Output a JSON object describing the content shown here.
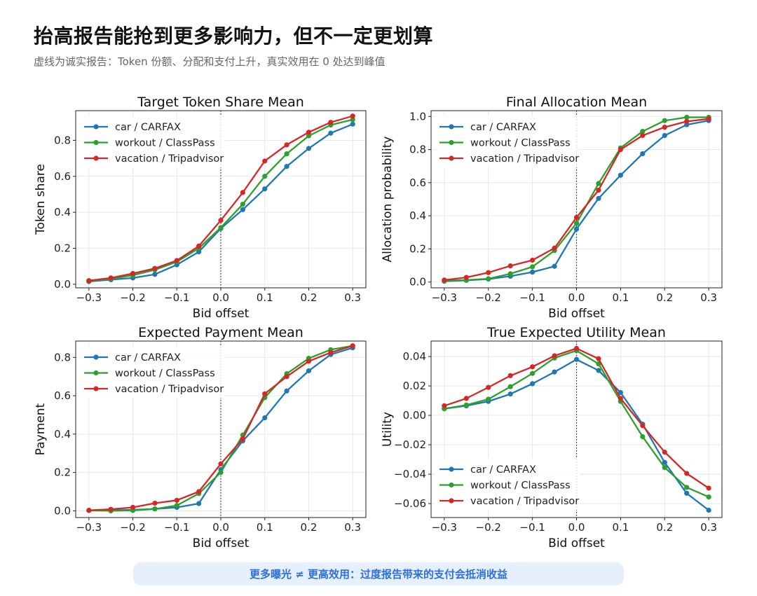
{
  "header": {
    "title": "抬高报告能抢到更多影响力，但不一定更划算",
    "subtitle": "虚线为诚实报告：Token 份额、分配和支付上升，真实效用在 0 处达到峰值"
  },
  "callout": {
    "text": "更多曝光 ≠ 更高效用：过度报告带来的支付会抵消收益"
  },
  "colors": {
    "car": "#1f77b4",
    "workout": "#2ca02c",
    "vacation": "#d62728"
  },
  "chart_data": [
    {
      "type": "line",
      "title": "Target Token Share Mean",
      "xlabel": "Bid offset",
      "ylabel": "Token share",
      "xlim": [
        -0.33,
        0.33
      ],
      "ylim": [
        -0.02,
        0.965
      ],
      "xticks": [
        -0.3,
        -0.2,
        -0.1,
        0.0,
        0.1,
        0.2,
        0.3
      ],
      "xtick_labels": [
        "−0.3",
        "−0.2",
        "−0.1",
        "0.0",
        "0.1",
        "0.2",
        "0.3"
      ],
      "yticks": [
        0.0,
        0.2,
        0.4,
        0.6,
        0.8
      ],
      "ytick_labels": [
        "0.0",
        "0.2",
        "0.4",
        "0.6",
        "0.8"
      ],
      "grid": true,
      "legend": "top-left",
      "reference_line": {
        "x": 0,
        "style": "dotted"
      },
      "x": [
        -0.3,
        -0.25,
        -0.2,
        -0.15,
        -0.1,
        -0.05,
        0.0,
        0.05,
        0.1,
        0.15,
        0.2,
        0.25,
        0.3
      ],
      "series": [
        {
          "name": "car / CARFAX",
          "color": "#1f77b4",
          "values": [
            0.015,
            0.025,
            0.035,
            0.055,
            0.108,
            0.18,
            0.31,
            0.415,
            0.53,
            0.655,
            0.755,
            0.84,
            0.89
          ]
        },
        {
          "name": "workout / ClassPass",
          "color": "#2ca02c",
          "values": [
            0.018,
            0.03,
            0.05,
            0.08,
            0.125,
            0.2,
            0.315,
            0.445,
            0.6,
            0.725,
            0.825,
            0.885,
            0.915
          ]
        },
        {
          "name": "vacation / Tripadvisor",
          "color": "#d62728",
          "values": [
            0.02,
            0.035,
            0.06,
            0.088,
            0.132,
            0.212,
            0.355,
            0.51,
            0.685,
            0.775,
            0.845,
            0.9,
            0.935
          ]
        }
      ]
    },
    {
      "type": "line",
      "title": "Final Allocation Mean",
      "xlabel": "Bid offset",
      "ylabel": "Allocation probability",
      "xlim": [
        -0.33,
        0.33
      ],
      "ylim": [
        -0.035,
        1.035
      ],
      "xticks": [
        -0.3,
        -0.2,
        -0.1,
        0.0,
        0.1,
        0.2,
        0.3
      ],
      "xtick_labels": [
        "−0.3",
        "−0.2",
        "−0.1",
        "0.0",
        "0.1",
        "0.2",
        "0.3"
      ],
      "yticks": [
        0.0,
        0.2,
        0.4,
        0.6,
        0.8,
        1.0
      ],
      "ytick_labels": [
        "0.0",
        "0.2",
        "0.4",
        "0.6",
        "0.8",
        "1.0"
      ],
      "grid": true,
      "legend": "top-left",
      "reference_line": {
        "x": 0,
        "style": "dotted"
      },
      "x": [
        -0.3,
        -0.25,
        -0.2,
        -0.15,
        -0.1,
        -0.05,
        0.0,
        0.05,
        0.1,
        0.15,
        0.2,
        0.25,
        0.3
      ],
      "series": [
        {
          "name": "car / CARFAX",
          "color": "#1f77b4",
          "values": [
            0.005,
            0.01,
            0.018,
            0.035,
            0.06,
            0.095,
            0.32,
            0.505,
            0.645,
            0.775,
            0.885,
            0.95,
            0.975
          ]
        },
        {
          "name": "workout / ClassPass",
          "color": "#2ca02c",
          "values": [
            0.008,
            0.012,
            0.02,
            0.05,
            0.092,
            0.19,
            0.355,
            0.595,
            0.81,
            0.91,
            0.975,
            0.995,
            0.995
          ]
        },
        {
          "name": "vacation / Tripadvisor",
          "color": "#d62728",
          "values": [
            0.012,
            0.028,
            0.057,
            0.098,
            0.132,
            0.205,
            0.39,
            0.555,
            0.8,
            0.885,
            0.935,
            0.97,
            0.985
          ]
        }
      ]
    },
    {
      "type": "line",
      "title": "Expected Payment Mean",
      "xlabel": "Bid offset",
      "ylabel": "Payment",
      "xlim": [
        -0.33,
        0.33
      ],
      "ylim": [
        -0.035,
        0.885
      ],
      "xticks": [
        -0.3,
        -0.2,
        -0.1,
        0.0,
        0.1,
        0.2,
        0.3
      ],
      "xtick_labels": [
        "−0.3",
        "−0.2",
        "−0.1",
        "0.0",
        "0.1",
        "0.2",
        "0.3"
      ],
      "yticks": [
        0.0,
        0.2,
        0.4,
        0.6,
        0.8
      ],
      "ytick_labels": [
        "0.0",
        "0.2",
        "0.4",
        "0.6",
        "0.8"
      ],
      "grid": true,
      "legend": "top-left",
      "reference_line": {
        "x": 0,
        "style": "dotted"
      },
      "x": [
        -0.3,
        -0.25,
        -0.2,
        -0.15,
        -0.1,
        -0.05,
        0.0,
        0.05,
        0.1,
        0.15,
        0.2,
        0.25,
        0.3
      ],
      "series": [
        {
          "name": "car / CARFAX",
          "color": "#1f77b4",
          "values": [
            0.002,
            0.003,
            0.005,
            0.01,
            0.018,
            0.038,
            0.215,
            0.365,
            0.485,
            0.625,
            0.73,
            0.815,
            0.85
          ]
        },
        {
          "name": "workout / ClassPass",
          "color": "#2ca02c",
          "values": [
            0.002,
            0.0,
            0.002,
            0.01,
            0.028,
            0.09,
            0.2,
            0.395,
            0.59,
            0.715,
            0.795,
            0.84,
            0.86
          ]
        },
        {
          "name": "vacation / Tripadvisor",
          "color": "#d62728",
          "values": [
            0.003,
            0.008,
            0.018,
            0.04,
            0.055,
            0.1,
            0.245,
            0.375,
            0.61,
            0.7,
            0.78,
            0.825,
            0.86
          ]
        }
      ]
    },
    {
      "type": "line",
      "title": "True Expected Utility Mean",
      "xlabel": "Bid offset",
      "ylabel": "Utility",
      "xlim": [
        -0.33,
        0.33
      ],
      "ylim": [
        -0.0695,
        0.0505
      ],
      "xticks": [
        -0.3,
        -0.2,
        -0.1,
        0.0,
        0.1,
        0.2,
        0.3
      ],
      "xtick_labels": [
        "−0.3",
        "−0.2",
        "−0.1",
        "0.0",
        "0.1",
        "0.2",
        "0.3"
      ],
      "yticks": [
        -0.06,
        -0.04,
        -0.02,
        0.0,
        0.02,
        0.04
      ],
      "ytick_labels": [
        "−0.06",
        "−0.04",
        "−0.02",
        "0.00",
        "0.02",
        "0.04"
      ],
      "grid": true,
      "legend": "bottom-left",
      "reference_line": {
        "x": 0,
        "style": "dotted"
      },
      "x": [
        -0.3,
        -0.25,
        -0.2,
        -0.15,
        -0.1,
        -0.05,
        0.0,
        0.05,
        0.1,
        0.15,
        0.2,
        0.25,
        0.3
      ],
      "series": [
        {
          "name": "car / CARFAX",
          "color": "#1f77b4",
          "values": [
            0.0045,
            0.0065,
            0.0095,
            0.0145,
            0.0215,
            0.0295,
            0.038,
            0.0305,
            0.0155,
            -0.006,
            -0.032,
            -0.053,
            -0.0645
          ]
        },
        {
          "name": "workout / ClassPass",
          "color": "#2ca02c",
          "values": [
            0.0045,
            0.007,
            0.011,
            0.0195,
            0.0285,
            0.039,
            0.044,
            0.035,
            0.0095,
            -0.0145,
            -0.0355,
            -0.049,
            -0.0555
          ]
        },
        {
          "name": "vacation / Tripadvisor",
          "color": "#d62728",
          "values": [
            0.0065,
            0.0115,
            0.019,
            0.027,
            0.033,
            0.0405,
            0.0455,
            0.0385,
            0.0115,
            -0.007,
            -0.025,
            -0.0395,
            -0.0495
          ]
        }
      ]
    }
  ]
}
